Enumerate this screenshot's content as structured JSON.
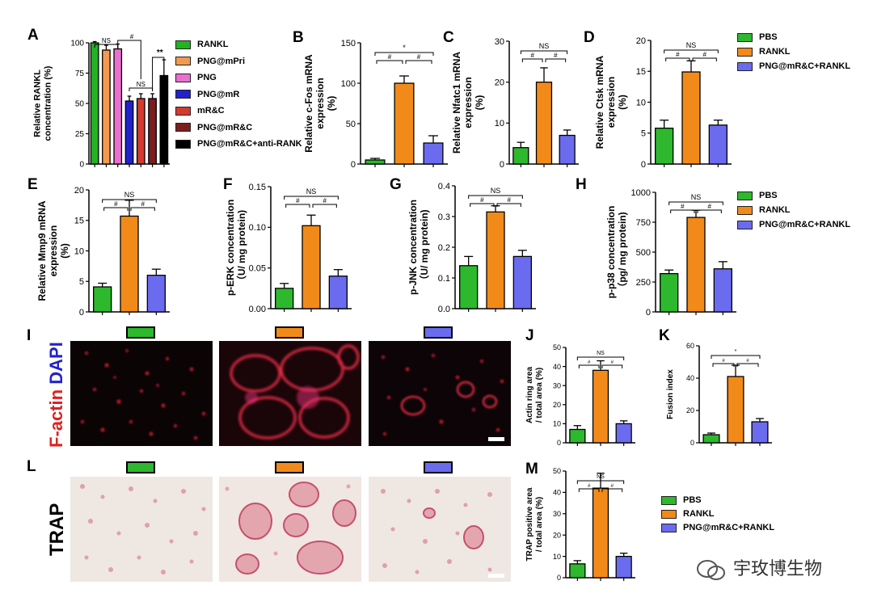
{
  "colors": {
    "green": "#2db82d",
    "orange": "#f28a1a",
    "blue": "#6b6bf0"
  },
  "panel_A": {
    "letter": "A",
    "legend": [
      {
        "label": "RANKL",
        "color": "#22b222"
      },
      {
        "label": "PNG@mPri",
        "color": "#f39a50"
      },
      {
        "label": "PNG",
        "color": "#ea6fd0"
      },
      {
        "label": "PNG@mR",
        "color": "#2222cc"
      },
      {
        "label": "mR&C",
        "color": "#d43a30"
      },
      {
        "label": "PNG@mR&C",
        "color": "#7a1f1f"
      },
      {
        "label": "PNG@mR&C+anti-RANK",
        "color": "#000000"
      }
    ]
  },
  "legend_three": [
    "PBS",
    "RANKL",
    "PNG@mR&C+RANKL"
  ],
  "letters_IL": {
    "I": "I",
    "L": "L"
  },
  "stains": {
    "factin": "F-actin",
    "dapi": "DAPI",
    "trap": "TRAP"
  },
  "watermark": "宇玫博生物",
  "chart_data": [
    {
      "id": "A",
      "type": "bar",
      "ylabel": "Relative RANKL concentration (%)",
      "categories": [
        "RANKL",
        "PNG@mPri",
        "PNG",
        "PNG@mR",
        "mR&C",
        "PNG@mR&C",
        "PNG@mR&C+anti-RANK"
      ],
      "values": [
        100,
        94,
        95,
        52,
        54,
        54,
        73
      ],
      "errors": [
        1,
        4,
        4,
        4,
        4,
        4,
        13
      ],
      "ylim": [
        0,
        100
      ],
      "yticks": [
        0,
        25,
        50,
        75,
        100
      ],
      "annotations": [
        "NS",
        "#",
        "NS",
        "**"
      ]
    },
    {
      "id": "B",
      "type": "bar",
      "ylabel": "Relative c-Fos mRNA expression (%)",
      "categories": [
        "PBS",
        "RANKL",
        "PNG@mR&C+RANKL"
      ],
      "values": [
        5,
        100,
        26
      ],
      "errors": [
        2,
        9,
        9
      ],
      "ylim": [
        0,
        150
      ],
      "yticks": [
        0,
        50,
        100,
        150
      ],
      "annotations": [
        "*",
        "#",
        "#"
      ]
    },
    {
      "id": "C",
      "type": "bar",
      "ylabel": "Relative Nfatc1 mRNA expression (%)",
      "categories": [
        "PBS",
        "RANKL",
        "PNG@mR&C+RANKL"
      ],
      "values": [
        4,
        20,
        7
      ],
      "errors": [
        1.3,
        3.5,
        1.3
      ],
      "ylim": [
        0,
        30
      ],
      "yticks": [
        0,
        10,
        20,
        30
      ],
      "annotations": [
        "NS",
        "#",
        "#"
      ]
    },
    {
      "id": "D",
      "type": "bar",
      "ylabel": "Relative Ctsk mRNA expression (%)",
      "categories": [
        "PBS",
        "RANKL",
        "PNG@mR&C+RANKL"
      ],
      "values": [
        5.8,
        14.9,
        6.3
      ],
      "errors": [
        1.3,
        1.8,
        0.8
      ],
      "ylim": [
        0,
        20
      ],
      "yticks": [
        0,
        5,
        10,
        15,
        20
      ],
      "annotations": [
        "NS",
        "#",
        "#"
      ]
    },
    {
      "id": "E",
      "type": "bar",
      "ylabel": "Relative Mmp9 mRNA expression (%)",
      "categories": [
        "PBS",
        "RANKL",
        "PNG@mR&C+RANKL"
      ],
      "values": [
        4.1,
        15.7,
        6
      ],
      "errors": [
        0.6,
        2.6,
        1
      ],
      "ylim": [
        0,
        20
      ],
      "yticks": [
        0,
        5,
        10,
        15,
        20
      ],
      "annotations": [
        "NS",
        "#",
        "#"
      ]
    },
    {
      "id": "F",
      "type": "bar",
      "ylabel": "p-ERK concentration (U/ mg protein)",
      "categories": [
        "PBS",
        "RANKL",
        "PNG@mR&C+RANKL"
      ],
      "values": [
        0.025,
        0.102,
        0.04
      ],
      "errors": [
        0.006,
        0.013,
        0.008
      ],
      "ylim": [
        0,
        0.15
      ],
      "yticks": [
        0,
        0.05,
        0.1,
        0.15
      ],
      "ytick_labels": [
        "0.00",
        "0.05",
        "0.10",
        "0.15"
      ],
      "annotations": [
        "NS",
        "#",
        "#"
      ]
    },
    {
      "id": "G",
      "type": "bar",
      "ylabel": "p-JNK concentration (U/ mg protein)",
      "categories": [
        "PBS",
        "RANKL",
        "PNG@mR&C+RANKL"
      ],
      "values": [
        0.14,
        0.315,
        0.17
      ],
      "errors": [
        0.03,
        0.02,
        0.02
      ],
      "ylim": [
        0,
        0.4
      ],
      "yticks": [
        0,
        0.1,
        0.2,
        0.3,
        0.4
      ],
      "ytick_labels": [
        "0.0",
        "0.1",
        "0.2",
        "0.3",
        "0.4"
      ],
      "annotations": [
        "NS",
        "#",
        "#"
      ]
    },
    {
      "id": "H",
      "type": "bar",
      "ylabel": "p-p38 concentration (pg/ mg protein)",
      "categories": [
        "PBS",
        "RANKL",
        "PNG@mR&C+RANKL"
      ],
      "values": [
        320,
        790,
        360
      ],
      "errors": [
        30,
        60,
        60
      ],
      "ylim": [
        0,
        1000
      ],
      "yticks": [
        0,
        250,
        500,
        750,
        1000
      ],
      "annotations": [
        "NS",
        "#",
        "#"
      ]
    },
    {
      "id": "J",
      "type": "bar",
      "ylabel": "Actin ring area / total area (%)",
      "categories": [
        "PBS",
        "RANKL",
        "PNG@mR&C+RANKL"
      ],
      "values": [
        7,
        38,
        10
      ],
      "errors": [
        2,
        5,
        1.5
      ],
      "ylim": [
        0,
        50
      ],
      "yticks": [
        0,
        10,
        20,
        30,
        40,
        50
      ],
      "annotations": [
        "NS",
        "#",
        "#"
      ]
    },
    {
      "id": "K",
      "type": "bar",
      "ylabel": "Fusion index",
      "categories": [
        "PBS",
        "RANKL",
        "PNG@mR&C+RANKL"
      ],
      "values": [
        5,
        41,
        13
      ],
      "errors": [
        1,
        7,
        2
      ],
      "ylim": [
        0,
        60
      ],
      "yticks": [
        0,
        20,
        40,
        60
      ],
      "annotations": [
        "*",
        "#",
        "#"
      ]
    },
    {
      "id": "M",
      "type": "bar",
      "ylabel": "TRAP positive area / total area (%)",
      "categories": [
        "PBS",
        "RANKL",
        "PNG@mR&C+RANKL"
      ],
      "values": [
        6.5,
        42,
        10
      ],
      "errors": [
        1.5,
        7,
        1.5
      ],
      "ylim": [
        0,
        50
      ],
      "yticks": [
        0,
        10,
        20,
        30,
        40,
        50
      ],
      "annotations": [
        "NS",
        "#",
        "#"
      ]
    }
  ]
}
